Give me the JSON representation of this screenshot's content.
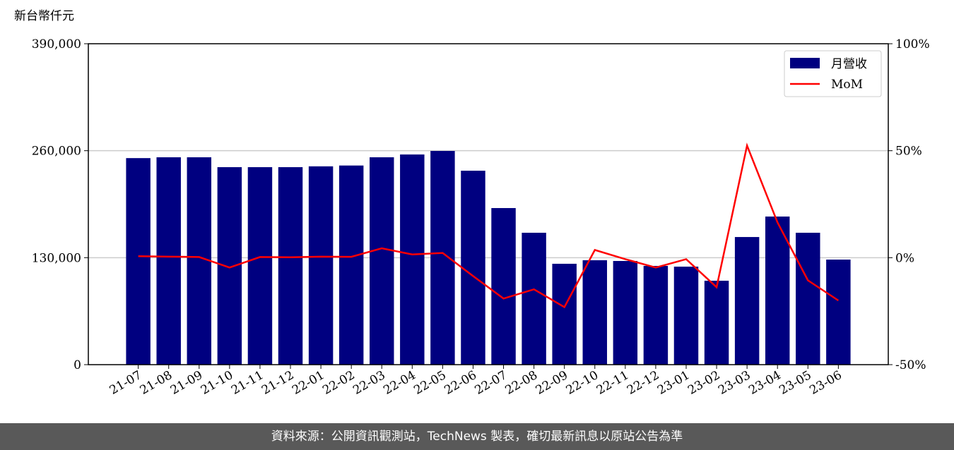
{
  "chart_data": {
    "type": "bar_line",
    "y_label": "新台幣仟元",
    "categories": [
      "21-07",
      "21-08",
      "21-09",
      "21-10",
      "21-11",
      "21-12",
      "22-01",
      "22-02",
      "22-03",
      "22-04",
      "22-05",
      "22-06",
      "22-07",
      "22-08",
      "22-09",
      "22-10",
      "22-11",
      "22-12",
      "23-01",
      "23-02",
      "23-03",
      "23-04",
      "23-05",
      "23-06"
    ],
    "series": [
      {
        "name": "月營收",
        "color": "#000080",
        "values": [
          251000,
          252000,
          252000,
          240000,
          240000,
          240000,
          241000,
          242000,
          252000,
          255400,
          259700,
          235700,
          190300,
          160300,
          122600,
          126900,
          126000,
          120000,
          119100,
          102000,
          155100,
          180000,
          160300,
          127700
        ]
      },
      {
        "name": "MoM",
        "color": "#ff0000",
        "axis": "y2",
        "values": [
          0.7,
          0.5,
          0.3,
          -4.6,
          0.3,
          0.2,
          0.5,
          0.4,
          4.4,
          1.5,
          2.2,
          -8.6,
          -19.1,
          -14.8,
          -23.1,
          3.6,
          -0.7,
          -4.6,
          -0.7,
          -13.8,
          52.4,
          16.5,
          -10.6,
          -20.0
        ]
      }
    ],
    "ylim": [
      0,
      390000
    ],
    "yticks": [
      0,
      {
        "value": 130000,
        "label": "130,000"
      },
      {
        "value": 260000,
        "label": "260,000"
      },
      {
        "value": 390000,
        "label": "390,000"
      }
    ],
    "y2lim": [
      -50,
      100
    ],
    "y2ticks": [
      {
        "value": -50,
        "label": "-50%"
      },
      {
        "value": 0,
        "label": "0%"
      },
      {
        "value": 50,
        "label": "50%"
      },
      {
        "value": 100,
        "label": "100%"
      }
    ],
    "grid": true,
    "legend": "upper right",
    "source": "資料來源：公開資訊觀測站，TechNews 製表，確切最新訊息以原站公告為準"
  }
}
